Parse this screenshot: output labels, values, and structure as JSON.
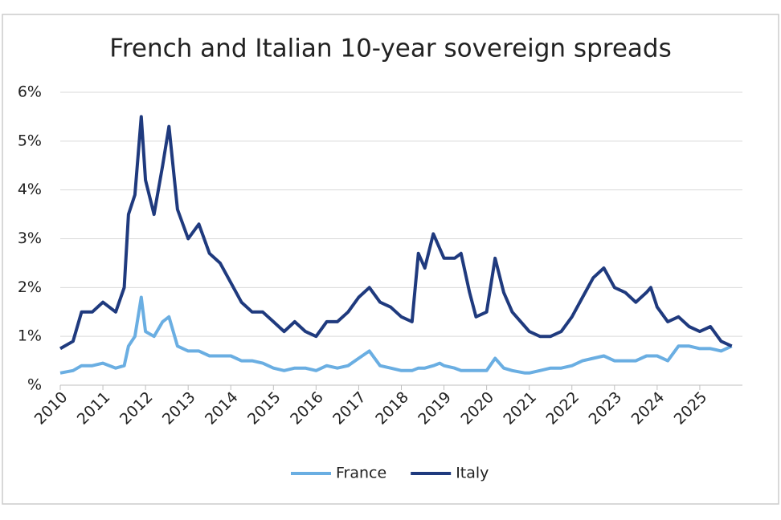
{
  "chart_data": {
    "type": "line",
    "title": "French and Italian 10-year sovereign spreads",
    "x": [
      2010,
      2010.3,
      2010.5,
      2010.75,
      2011,
      2011.3,
      2011.5,
      2011.6,
      2011.75,
      2011.9,
      2012,
      2012.2,
      2012.4,
      2012.55,
      2012.75,
      2013,
      2013.25,
      2013.5,
      2013.75,
      2014,
      2014.25,
      2014.5,
      2014.75,
      2015,
      2015.25,
      2015.5,
      2015.75,
      2016,
      2016.25,
      2016.5,
      2016.75,
      2017,
      2017.25,
      2017.5,
      2017.75,
      2018,
      2018.25,
      2018.4,
      2018.55,
      2018.75,
      2018.9,
      2019,
      2019.25,
      2019.4,
      2019.6,
      2019.75,
      2020,
      2020.2,
      2020.4,
      2020.6,
      2020.9,
      2021,
      2021.25,
      2021.5,
      2021.75,
      2022,
      2022.25,
      2022.5,
      2022.75,
      2023,
      2023.25,
      2023.5,
      2023.75,
      2023.85,
      2024,
      2024.25,
      2024.5,
      2024.75,
      2025,
      2025.25,
      2025.5,
      2025.75
    ],
    "series": [
      {
        "name": "France",
        "color": "#6aaee2",
        "values": [
          0.25,
          0.3,
          0.4,
          0.4,
          0.45,
          0.35,
          0.4,
          0.8,
          1.0,
          1.8,
          1.1,
          1.0,
          1.3,
          1.4,
          0.8,
          0.7,
          0.7,
          0.6,
          0.6,
          0.6,
          0.5,
          0.5,
          0.45,
          0.35,
          0.3,
          0.35,
          0.35,
          0.3,
          0.4,
          0.35,
          0.4,
          0.55,
          0.7,
          0.4,
          0.35,
          0.3,
          0.3,
          0.35,
          0.35,
          0.4,
          0.45,
          0.4,
          0.35,
          0.3,
          0.3,
          0.3,
          0.3,
          0.55,
          0.35,
          0.3,
          0.25,
          0.25,
          0.3,
          0.35,
          0.35,
          0.4,
          0.5,
          0.55,
          0.6,
          0.5,
          0.5,
          0.5,
          0.6,
          0.6,
          0.6,
          0.5,
          0.8,
          0.8,
          0.75,
          0.75,
          0.7,
          0.8
        ]
      },
      {
        "name": "Italy",
        "color": "#1f3a7e",
        "values": [
          0.75,
          0.9,
          1.5,
          1.5,
          1.7,
          1.5,
          2.0,
          3.5,
          3.9,
          5.5,
          4.2,
          3.5,
          4.5,
          5.3,
          3.6,
          3.0,
          3.3,
          2.7,
          2.5,
          2.1,
          1.7,
          1.5,
          1.5,
          1.3,
          1.1,
          1.3,
          1.1,
          1.0,
          1.3,
          1.3,
          1.5,
          1.8,
          2.0,
          1.7,
          1.6,
          1.4,
          1.3,
          2.7,
          2.4,
          3.1,
          2.8,
          2.6,
          2.6,
          2.7,
          1.9,
          1.4,
          1.5,
          2.6,
          1.9,
          1.5,
          1.2,
          1.1,
          1.0,
          1.0,
          1.1,
          1.4,
          1.8,
          2.2,
          2.4,
          2.0,
          1.9,
          1.7,
          1.9,
          2.0,
          1.6,
          1.3,
          1.4,
          1.2,
          1.1,
          1.2,
          0.9,
          0.8
        ]
      }
    ],
    "xlim": [
      2010,
      2026
    ],
    "xticks": [
      2010,
      2011,
      2012,
      2013,
      2014,
      2015,
      2016,
      2017,
      2018,
      2019,
      2020,
      2021,
      2022,
      2023,
      2024,
      2025
    ],
    "ylim": [
      0,
      6
    ],
    "yticks": [
      {
        "value": 0,
        "label": "%"
      },
      {
        "value": 1,
        "label": "1%"
      },
      {
        "value": 2,
        "label": "2%"
      },
      {
        "value": 3,
        "label": "3%"
      },
      {
        "value": 4,
        "label": "4%"
      },
      {
        "value": 5,
        "label": "5%"
      },
      {
        "value": 6,
        "label": "6%"
      }
    ],
    "grid": true,
    "legend": "bottom"
  }
}
